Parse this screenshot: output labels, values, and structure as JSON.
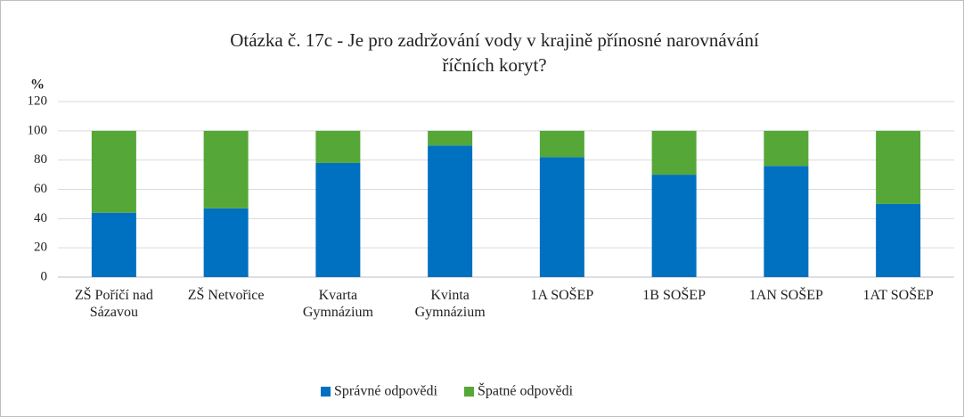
{
  "chart_data": {
    "type": "stacked-bar",
    "title": [
      "Otázka č. 17c - Je pro zadržování vody v krajině přínosné narovnávání",
      "říčních koryt?"
    ],
    "y_label": "%",
    "categories": [
      "ZŠ Poříčí nad Sázavou",
      "ZŠ Netvořice",
      "Kvarta Gymnázium",
      "Kvinta Gymnázium",
      "1A SOŠEP",
      "1B SOŠEP",
      "1AN SOŠEP",
      "1AT SOŠEP"
    ],
    "series": [
      {
        "name": "Správné odpovědi",
        "color": "#0070c0",
        "values": [
          44,
          47,
          78,
          90,
          82,
          70,
          76,
          50
        ]
      },
      {
        "name": "Špatné odpovědi",
        "color": "#55a737",
        "values": [
          56,
          53,
          22,
          10,
          18,
          30,
          24,
          50
        ]
      }
    ],
    "ylim": [
      0,
      120
    ],
    "yticks": [
      0,
      20,
      40,
      60,
      80,
      100,
      120
    ],
    "grid": true,
    "legend": "bottom"
  }
}
